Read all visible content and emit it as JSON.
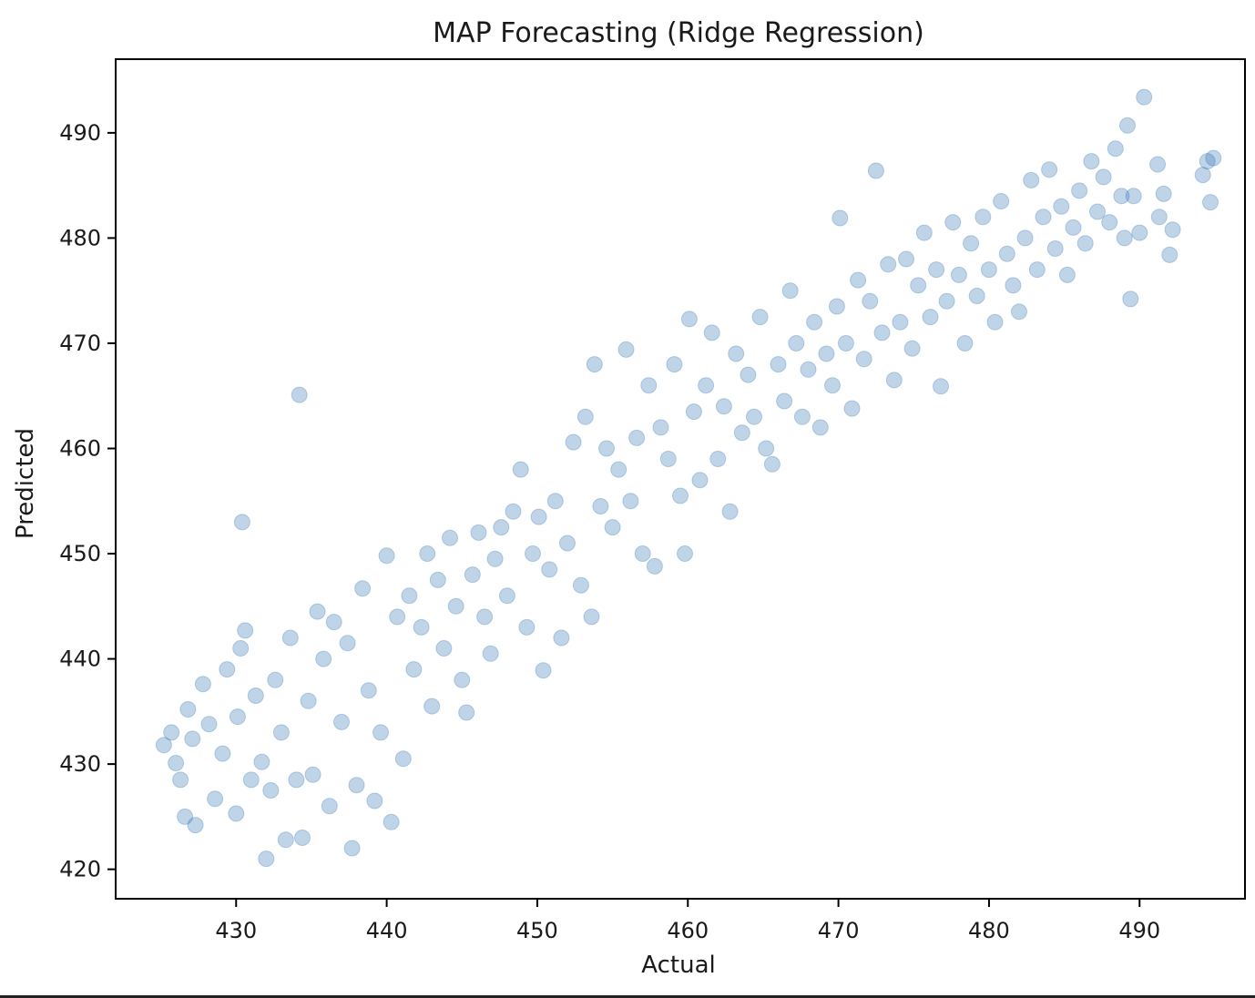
{
  "chart_data": {
    "type": "scatter",
    "title": "MAP Forecasting (Ridge Regression)",
    "xlabel": "Actual",
    "ylabel": "Predicted",
    "xlim": [
      422.0,
      497.0
    ],
    "ylim": [
      417.2,
      497.0
    ],
    "xticks": [
      430,
      440,
      450,
      460,
      470,
      480,
      490
    ],
    "yticks": [
      420,
      430,
      440,
      450,
      460,
      470,
      480,
      490
    ],
    "xtick_labels": [
      "430",
      "440",
      "450",
      "460",
      "470",
      "480",
      "490"
    ],
    "ytick_labels": [
      "420",
      "430",
      "440",
      "450",
      "460",
      "470",
      "480",
      "490"
    ],
    "grid": false,
    "legend": "none",
    "marker_color": "#2e72b4",
    "marker_alpha": 0.3,
    "series": [
      {
        "points": [
          [
            425.2,
            431.8
          ],
          [
            425.7,
            433.0
          ],
          [
            426.0,
            430.1
          ],
          [
            426.3,
            428.5
          ],
          [
            426.6,
            425.0
          ],
          [
            426.8,
            435.2
          ],
          [
            427.3,
            424.2
          ],
          [
            427.1,
            432.4
          ],
          [
            427.8,
            437.6
          ],
          [
            428.2,
            433.8
          ],
          [
            428.6,
            426.7
          ],
          [
            429.1,
            431.0
          ],
          [
            429.4,
            439.0
          ],
          [
            430.1,
            434.5
          ],
          [
            430.3,
            441.0
          ],
          [
            430.6,
            442.7
          ],
          [
            430.4,
            453.0
          ],
          [
            430.0,
            425.3
          ],
          [
            431.0,
            428.5
          ],
          [
            431.3,
            436.5
          ],
          [
            431.7,
            430.2
          ],
          [
            432.0,
            421.0
          ],
          [
            432.3,
            427.5
          ],
          [
            432.6,
            438.0
          ],
          [
            433.0,
            433.0
          ],
          [
            433.3,
            422.8
          ],
          [
            433.6,
            442.0
          ],
          [
            434.0,
            428.5
          ],
          [
            434.2,
            465.1
          ],
          [
            434.4,
            423.0
          ],
          [
            434.8,
            436.0
          ],
          [
            435.1,
            429.0
          ],
          [
            435.4,
            444.5
          ],
          [
            435.8,
            440.0
          ],
          [
            436.2,
            426.0
          ],
          [
            436.5,
            443.5
          ],
          [
            437.0,
            434.0
          ],
          [
            437.4,
            441.5
          ],
          [
            437.7,
            422.0
          ],
          [
            438.0,
            428.0
          ],
          [
            438.4,
            446.7
          ],
          [
            438.8,
            437.0
          ],
          [
            439.2,
            426.5
          ],
          [
            439.6,
            433.0
          ],
          [
            440.0,
            449.8
          ],
          [
            440.3,
            424.5
          ],
          [
            440.7,
            444.0
          ],
          [
            441.1,
            430.5
          ],
          [
            441.5,
            446.0
          ],
          [
            441.8,
            439.0
          ],
          [
            442.3,
            443.0
          ],
          [
            442.7,
            450.0
          ],
          [
            443.0,
            435.5
          ],
          [
            443.4,
            447.5
          ],
          [
            443.8,
            441.0
          ],
          [
            444.2,
            451.5
          ],
          [
            444.6,
            445.0
          ],
          [
            445.0,
            438.0
          ],
          [
            445.3,
            434.9
          ],
          [
            445.7,
            448.0
          ],
          [
            446.1,
            452.0
          ],
          [
            446.5,
            444.0
          ],
          [
            446.9,
            440.5
          ],
          [
            447.2,
            449.5
          ],
          [
            447.6,
            452.5
          ],
          [
            448.0,
            446.0
          ],
          [
            448.4,
            454.0
          ],
          [
            448.9,
            458.0
          ],
          [
            449.3,
            443.0
          ],
          [
            449.7,
            450.0
          ],
          [
            450.1,
            453.5
          ],
          [
            450.4,
            438.9
          ],
          [
            450.8,
            448.5
          ],
          [
            451.2,
            455.0
          ],
          [
            451.6,
            442.0
          ],
          [
            452.0,
            451.0
          ],
          [
            452.4,
            460.6
          ],
          [
            452.9,
            447.0
          ],
          [
            453.2,
            463.0
          ],
          [
            453.6,
            444.0
          ],
          [
            453.8,
            468.0
          ],
          [
            454.2,
            454.5
          ],
          [
            454.6,
            460.0
          ],
          [
            455.0,
            452.5
          ],
          [
            455.4,
            458.0
          ],
          [
            455.9,
            469.4
          ],
          [
            456.2,
            455.0
          ],
          [
            456.6,
            461.0
          ],
          [
            457.0,
            450.0
          ],
          [
            457.4,
            466.0
          ],
          [
            457.8,
            448.8
          ],
          [
            458.2,
            462.0
          ],
          [
            458.7,
            459.0
          ],
          [
            459.1,
            468.0
          ],
          [
            459.5,
            455.5
          ],
          [
            459.8,
            450.0
          ],
          [
            460.1,
            472.3
          ],
          [
            460.4,
            463.5
          ],
          [
            460.8,
            457.0
          ],
          [
            461.2,
            466.0
          ],
          [
            461.6,
            471.0
          ],
          [
            462.0,
            459.0
          ],
          [
            462.4,
            464.0
          ],
          [
            462.8,
            454.0
          ],
          [
            463.2,
            469.0
          ],
          [
            463.6,
            461.5
          ],
          [
            464.0,
            467.0
          ],
          [
            464.4,
            463.0
          ],
          [
            464.8,
            472.5
          ],
          [
            465.2,
            460.0
          ],
          [
            465.6,
            458.5
          ],
          [
            466.0,
            468.0
          ],
          [
            466.4,
            464.5
          ],
          [
            466.8,
            475.0
          ],
          [
            467.2,
            470.0
          ],
          [
            467.6,
            463.0
          ],
          [
            468.0,
            467.5
          ],
          [
            468.4,
            472.0
          ],
          [
            468.8,
            462.0
          ],
          [
            469.2,
            469.0
          ],
          [
            469.6,
            466.0
          ],
          [
            469.9,
            473.5
          ],
          [
            470.1,
            481.9
          ],
          [
            470.5,
            470.0
          ],
          [
            470.9,
            463.8
          ],
          [
            471.3,
            476.0
          ],
          [
            471.7,
            468.5
          ],
          [
            472.1,
            474.0
          ],
          [
            472.5,
            486.4
          ],
          [
            472.9,
            471.0
          ],
          [
            473.3,
            477.5
          ],
          [
            473.7,
            466.5
          ],
          [
            474.1,
            472.0
          ],
          [
            474.5,
            478.0
          ],
          [
            474.9,
            469.5
          ],
          [
            475.3,
            475.5
          ],
          [
            475.7,
            480.5
          ],
          [
            476.1,
            472.5
          ],
          [
            476.5,
            477.0
          ],
          [
            476.8,
            465.9
          ],
          [
            477.2,
            474.0
          ],
          [
            477.6,
            481.5
          ],
          [
            478.0,
            476.5
          ],
          [
            478.4,
            470.0
          ],
          [
            478.8,
            479.5
          ],
          [
            479.2,
            474.5
          ],
          [
            479.6,
            482.0
          ],
          [
            480.0,
            477.0
          ],
          [
            480.4,
            472.0
          ],
          [
            480.8,
            483.5
          ],
          [
            481.2,
            478.5
          ],
          [
            481.6,
            475.5
          ],
          [
            482.0,
            473.0
          ],
          [
            482.4,
            480.0
          ],
          [
            482.8,
            485.5
          ],
          [
            483.2,
            477.0
          ],
          [
            483.6,
            482.0
          ],
          [
            484.0,
            486.5
          ],
          [
            484.4,
            479.0
          ],
          [
            484.8,
            483.0
          ],
          [
            485.2,
            476.5
          ],
          [
            485.6,
            481.0
          ],
          [
            486.0,
            484.5
          ],
          [
            486.4,
            479.5
          ],
          [
            486.8,
            487.3
          ],
          [
            487.2,
            482.5
          ],
          [
            487.6,
            485.8
          ],
          [
            488.0,
            481.5
          ],
          [
            488.4,
            488.5
          ],
          [
            488.8,
            484.0
          ],
          [
            489.0,
            480.0
          ],
          [
            489.2,
            490.7
          ],
          [
            489.4,
            474.2
          ],
          [
            489.6,
            484.0
          ],
          [
            490.3,
            493.4
          ],
          [
            490.0,
            480.5
          ],
          [
            491.2,
            487.0
          ],
          [
            491.3,
            482.0
          ],
          [
            491.6,
            484.2
          ],
          [
            492.0,
            478.4
          ],
          [
            492.2,
            480.8
          ],
          [
            494.2,
            486.0
          ],
          [
            494.5,
            487.3
          ],
          [
            494.7,
            483.4
          ],
          [
            494.9,
            487.6
          ]
        ]
      }
    ]
  }
}
